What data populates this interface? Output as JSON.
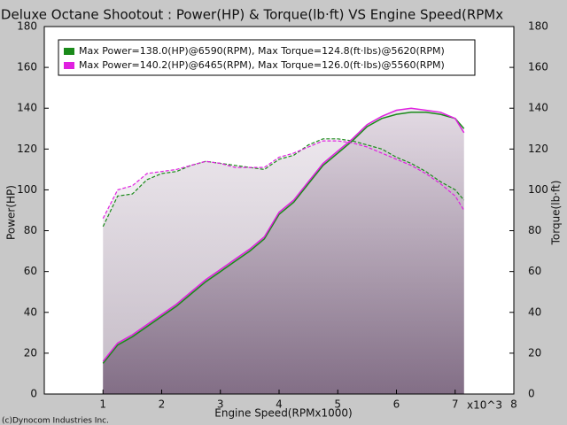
{
  "chart_data": {
    "type": "line",
    "title": "r Deluxe Octane Shootout : Power(HP) & Torque(lb·ft) VS Engine Speed(RPMx",
    "xlabel": "Engine Speed(RPMx1000)",
    "ylabel": "Power(HP)",
    "y2label": "Torque(lb·ft)",
    "x_unit": "x10^3",
    "footer": "(c)Dynocom Industries Inc.",
    "x": [
      1,
      1.25,
      1.5,
      1.75,
      2,
      2.25,
      2.5,
      2.75,
      3,
      3.25,
      3.5,
      3.75,
      4,
      4.25,
      4.5,
      4.75,
      5,
      5.25,
      5.5,
      5.75,
      6,
      6.25,
      6.5,
      6.75,
      7,
      7.15
    ],
    "xlim": [
      0,
      8
    ],
    "xticks": [
      1,
      2,
      3,
      4,
      5,
      6,
      7,
      8
    ],
    "ylim": [
      0,
      180
    ],
    "yticks": [
      0,
      20,
      40,
      60,
      80,
      100,
      120,
      140,
      160,
      180
    ],
    "y2lim": [
      0,
      180
    ],
    "y2ticks": [
      0,
      20,
      40,
      60,
      80,
      100,
      120,
      140,
      160,
      180
    ],
    "series": [
      {
        "name": "Max Power=138.0(HP)@6590(RPM), Max Torque=124.8(ft·lbs)@5620(RPM)",
        "color": "#1a8a1a",
        "values": [
          15,
          24,
          28,
          33,
          38,
          43,
          49,
          55,
          60,
          65,
          70,
          76,
          88,
          94,
          103,
          112,
          118,
          124,
          131,
          135,
          137,
          138,
          138,
          137,
          135,
          130
        ],
        "torque": [
          82,
          97,
          98,
          105,
          108,
          109,
          112,
          114,
          113,
          112,
          111,
          110,
          115,
          117,
          122,
          125,
          125,
          124,
          122,
          120,
          116,
          113,
          109,
          104,
          100,
          95
        ]
      },
      {
        "name": "Max Power=140.2(HP)@6465(RPM), Max Torque=126.0(ft·lbs)@5560(RPM)",
        "color": "#e020e0",
        "values": [
          16,
          25,
          29,
          34,
          39,
          44,
          50,
          56,
          61,
          66,
          71,
          77,
          89,
          95,
          104,
          113,
          119,
          125,
          132,
          136,
          139,
          140,
          139,
          138,
          135,
          128
        ],
        "torque": [
          86,
          100,
          102,
          108,
          109,
          110,
          112,
          114,
          113,
          111,
          111,
          111,
          116,
          118,
          121,
          124,
          124,
          123,
          121,
          118,
          115,
          112,
          108,
          103,
          97,
          90
        ]
      }
    ]
  }
}
